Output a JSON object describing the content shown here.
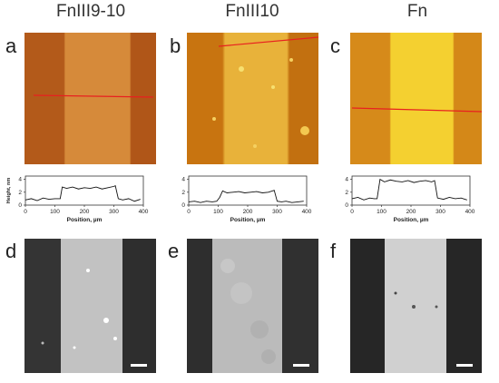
{
  "columns": [
    {
      "title": "FnIII9-10",
      "afm_letter": "a",
      "fluo_letter": "d",
      "afm_colors": {
        "left": "#b35a1a",
        "center": "#d68a3a",
        "right": "#b05618"
      },
      "fluo_colors": {
        "left": "#333333",
        "center": "#c4c4c4",
        "right": "#2e2e2e"
      },
      "profile": {
        "x": [
          0,
          20,
          40,
          60,
          80,
          100,
          118,
          125,
          140,
          160,
          180,
          200,
          220,
          240,
          260,
          280,
          300,
          305,
          315,
          330,
          350,
          370,
          390
        ],
        "y": [
          0.8,
          1.0,
          0.7,
          1.1,
          0.9,
          1.0,
          1.0,
          2.8,
          2.6,
          2.8,
          2.5,
          2.7,
          2.6,
          2.8,
          2.5,
          2.7,
          2.9,
          3.0,
          1.0,
          0.8,
          1.0,
          0.6,
          0.9
        ]
      }
    },
    {
      "title": "FnIII10",
      "afm_letter": "b",
      "fluo_letter": "e",
      "afm_colors": {
        "left": "#c87410",
        "center": "#e8b23a",
        "right": "#c27010"
      },
      "fluo_colors": {
        "left": "#2e2e2e",
        "center": "#bdbdbd",
        "right": "#2f2f2f"
      },
      "profile": {
        "x": [
          0,
          20,
          40,
          60,
          80,
          95,
          105,
          115,
          130,
          150,
          170,
          190,
          210,
          230,
          250,
          270,
          290,
          300,
          315,
          330,
          350,
          370,
          390
        ],
        "y": [
          0.5,
          0.6,
          0.4,
          0.6,
          0.5,
          0.6,
          1.2,
          2.2,
          1.9,
          2.0,
          2.1,
          1.9,
          2.0,
          2.1,
          1.9,
          2.0,
          2.3,
          0.6,
          0.5,
          0.6,
          0.4,
          0.5,
          0.6
        ]
      }
    },
    {
      "title": "Fn",
      "afm_letter": "c",
      "fluo_letter": "f",
      "afm_colors": {
        "left": "#d68a1a",
        "center": "#f4d030",
        "right": "#d48818"
      },
      "fluo_colors": {
        "left": "#262626",
        "center": "#cfcfcf",
        "right": "#262626"
      },
      "profile": {
        "x": [
          0,
          20,
          40,
          60,
          75,
          85,
          95,
          110,
          130,
          150,
          170,
          190,
          210,
          230,
          250,
          270,
          280,
          290,
          310,
          330,
          350,
          370,
          390
        ],
        "y": [
          1.0,
          1.2,
          0.8,
          1.1,
          1.0,
          1.0,
          4.0,
          3.6,
          3.9,
          3.7,
          3.6,
          3.8,
          3.5,
          3.7,
          3.8,
          3.6,
          3.8,
          1.1,
          0.9,
          1.2,
          1.0,
          1.1,
          0.8
        ]
      }
    }
  ],
  "profile_axes": {
    "xlabel": "Position, µm",
    "ylabel": "Height, nm",
    "xticks": [
      "0",
      "100",
      "200",
      "300",
      "400"
    ],
    "yticks": [
      "0",
      "2",
      "4"
    ],
    "line_color": "#111111"
  },
  "red_line_color": "#e82020"
}
